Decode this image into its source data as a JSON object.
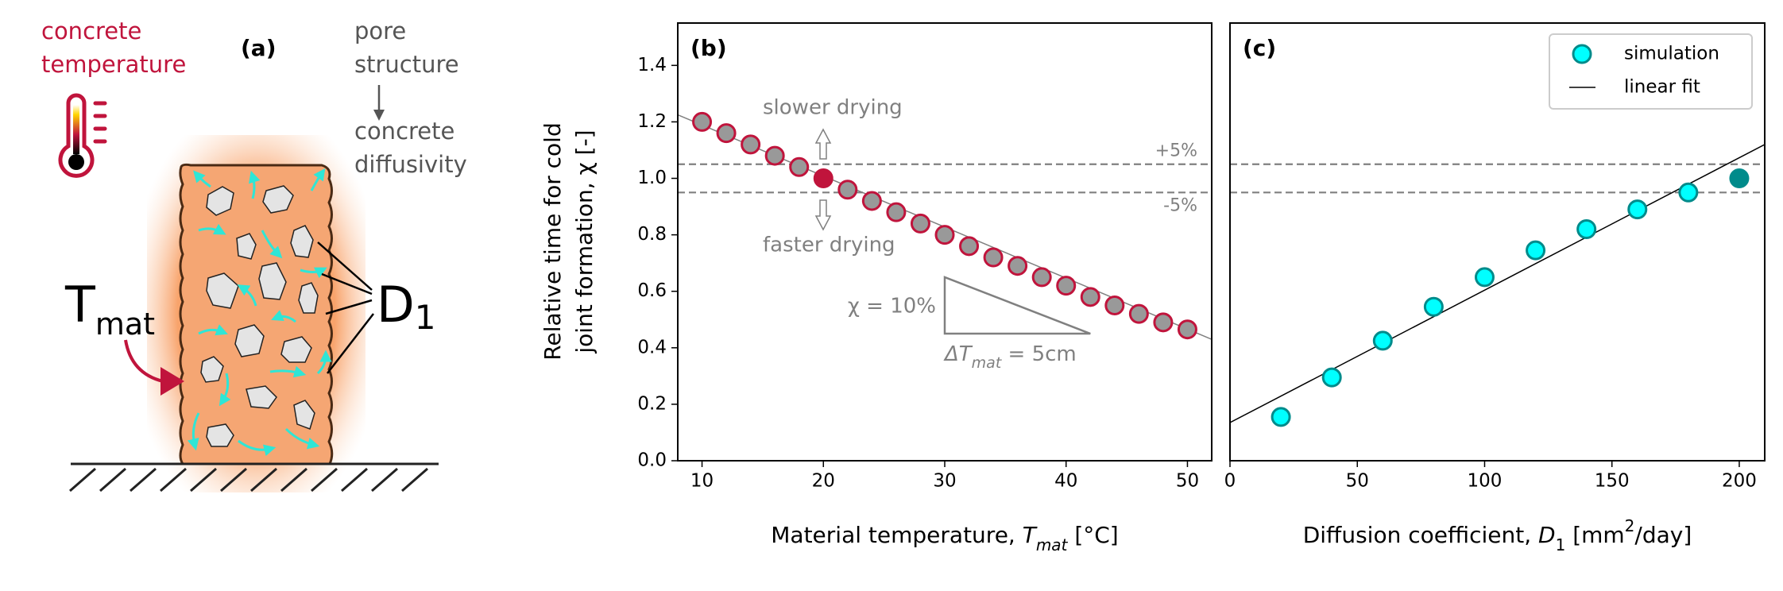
{
  "diagram": {
    "panel_label": "(a)",
    "temperature": [
      "concrete",
      "temperature"
    ],
    "pore": [
      "pore",
      "structure"
    ],
    "diffusivity": [
      "concrete",
      "diffusivity"
    ],
    "t_mat": [
      "T",
      "mat"
    ],
    "d_1": [
      "D",
      "1"
    ]
  },
  "chart_data": [
    {
      "type": "scatter",
      "panel_label": "(b)",
      "ylabel": [
        "Relative time for cold",
        "joint formation, χ [-]"
      ],
      "xlabel": [
        "Material temperature, ",
        "T",
        "mat",
        " [°C]"
      ],
      "xlim": [
        8,
        52
      ],
      "ylim": [
        0,
        1.55
      ],
      "xticks": [
        10,
        20,
        30,
        40,
        50
      ],
      "yticks": [
        {
          "value": 0,
          "label": "0.0"
        },
        0.2,
        0.4,
        0.6,
        0.8,
        {
          "value": 1,
          "label": "1.0"
        },
        1.2,
        1.4
      ],
      "series": [
        {
          "color": "#999999",
          "edgecolor": "#c0143c",
          "x": [
            10,
            12,
            14,
            16,
            18,
            20,
            22,
            24,
            26,
            28,
            30,
            32,
            34,
            36,
            38,
            40,
            42,
            44,
            46,
            48,
            50
          ],
          "values": [
            1.2,
            1.16,
            1.12,
            1.08,
            1.04,
            1.0,
            0.96,
            0.92,
            0.88,
            0.84,
            0.8,
            0.76,
            0.72,
            0.69,
            0.65,
            0.62,
            0.58,
            0.55,
            0.52,
            0.49,
            0.465
          ]
        }
      ],
      "highlight": {
        "index": 5,
        "color": "#c0143c"
      },
      "fit": {
        "x": [
          8,
          52
        ],
        "values": [
          1.225,
          0.43
        ],
        "color": "#808080"
      },
      "hlines": [
        {
          "value": 1.05,
          "label": "+5%"
        },
        {
          "value": 0.95,
          "label": "-5%"
        }
      ],
      "hline_color": "#808080",
      "annotations": {
        "slower": "slower drying",
        "faster": "faster drying",
        "chi": "χ = 10%",
        "delta": [
          "ΔT",
          "mat",
          " = 5cm"
        ]
      },
      "slope_triangle": {
        "x": [
          30,
          30,
          42
        ],
        "values": [
          0.65,
          0.45,
          0.45
        ]
      }
    },
    {
      "type": "scatter",
      "panel_label": "(c)",
      "xlabel": [
        "Diffusion coefficient, ",
        "D",
        "1",
        " [mm",
        "2",
        "/day]"
      ],
      "xlim": [
        0,
        210
      ],
      "ylim": [
        0,
        1.55
      ],
      "xticks": [
        0,
        50,
        100,
        150,
        200
      ],
      "series": [
        {
          "name": "simulation",
          "color": "#00ffff",
          "edgecolor": "#008b8b",
          "x": [
            20,
            40,
            60,
            80,
            100,
            120,
            140,
            160,
            180,
            200
          ],
          "values": [
            0.155,
            0.295,
            0.425,
            0.545,
            0.65,
            0.745,
            0.82,
            0.89,
            0.95,
            1.0
          ]
        }
      ],
      "highlight": {
        "index": 9,
        "color": "#008b8b"
      },
      "fit": {
        "name": "linear fit",
        "x": [
          0,
          210
        ],
        "values": [
          0.135,
          1.12
        ],
        "color": "#000000"
      },
      "hlines": [
        {
          "value": 1.05
        },
        {
          "value": 0.95
        }
      ],
      "hline_color": "#808080",
      "legend": "upper right"
    }
  ]
}
